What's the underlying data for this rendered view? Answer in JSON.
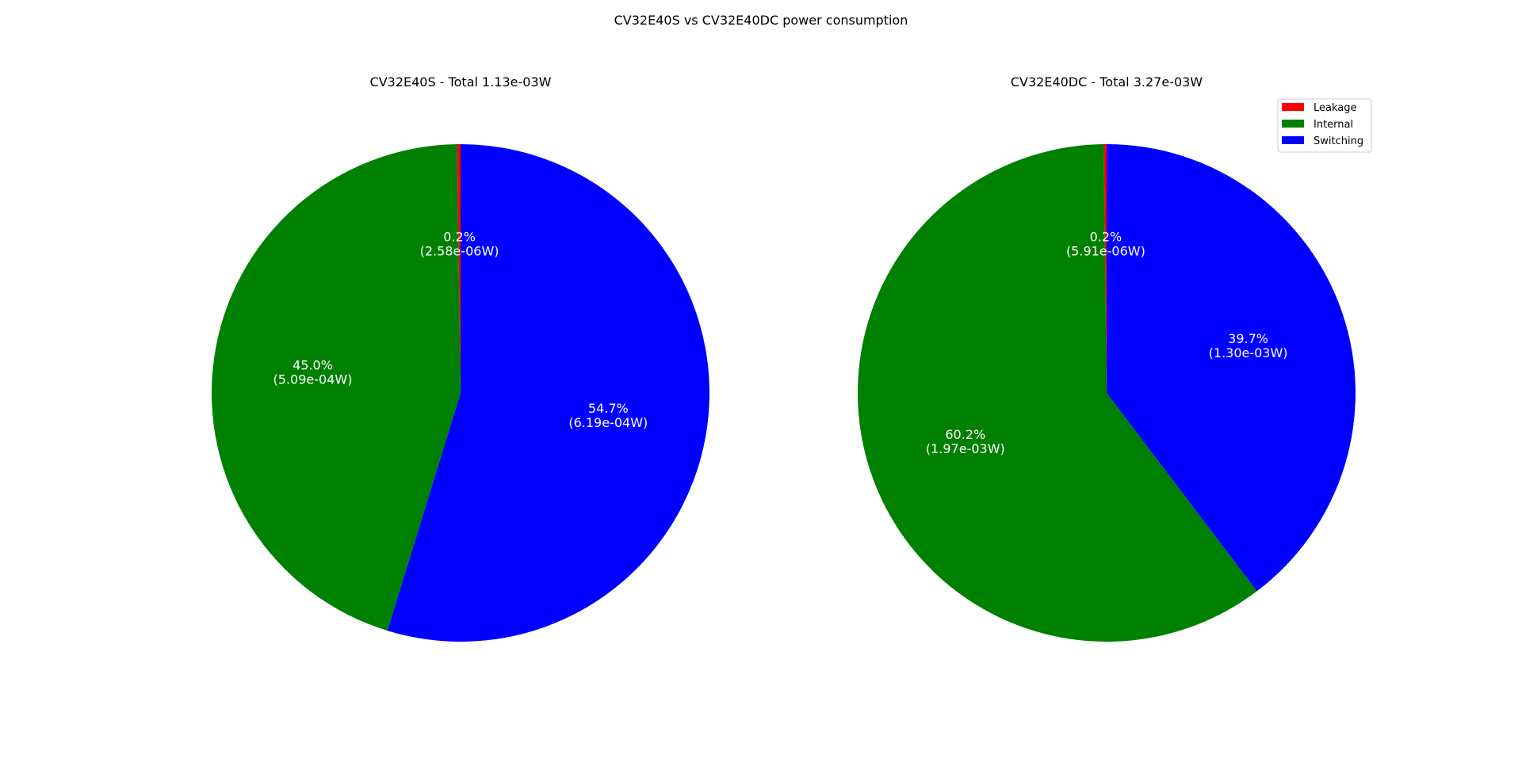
{
  "suptitle": "CV32E40S vs CV32E40DC power consumption",
  "chart_data": [
    {
      "type": "pie",
      "title": "CV32E40S - Total 1.13e-03W",
      "categories": [
        "Leakage",
        "Internal",
        "Switching"
      ],
      "values": [
        2.58e-06,
        0.000509,
        0.000619
      ],
      "labels": [
        {
          "pct": "0.2%",
          "watts": "(2.58e-06W)"
        },
        {
          "pct": "45.0%",
          "watts": "(5.09e-04W)"
        },
        {
          "pct": "54.7%",
          "watts": "(6.19e-04W)"
        }
      ],
      "colors": [
        "#ff0000",
        "#008000",
        "#0000ff"
      ],
      "start_angle": 90,
      "direction": "counterclockwise"
    },
    {
      "type": "pie",
      "title": "CV32E40DC - Total 3.27e-03W",
      "categories": [
        "Leakage",
        "Internal",
        "Switching"
      ],
      "values": [
        5.91e-06,
        0.00197,
        0.0013
      ],
      "labels": [
        {
          "pct": "0.2%",
          "watts": "(5.91e-06W)"
        },
        {
          "pct": "60.2%",
          "watts": "(1.97e-03W)"
        },
        {
          "pct": "39.7%",
          "watts": "(1.30e-03W)"
        }
      ],
      "colors": [
        "#ff0000",
        "#008000",
        "#0000ff"
      ],
      "start_angle": 90,
      "direction": "counterclockwise"
    }
  ],
  "legend": {
    "placement": "top-right",
    "entries": [
      {
        "label": "Leakage",
        "color": "#ff0000"
      },
      {
        "label": "Internal",
        "color": "#008000"
      },
      {
        "label": "Switching",
        "color": "#0000ff"
      }
    ]
  }
}
